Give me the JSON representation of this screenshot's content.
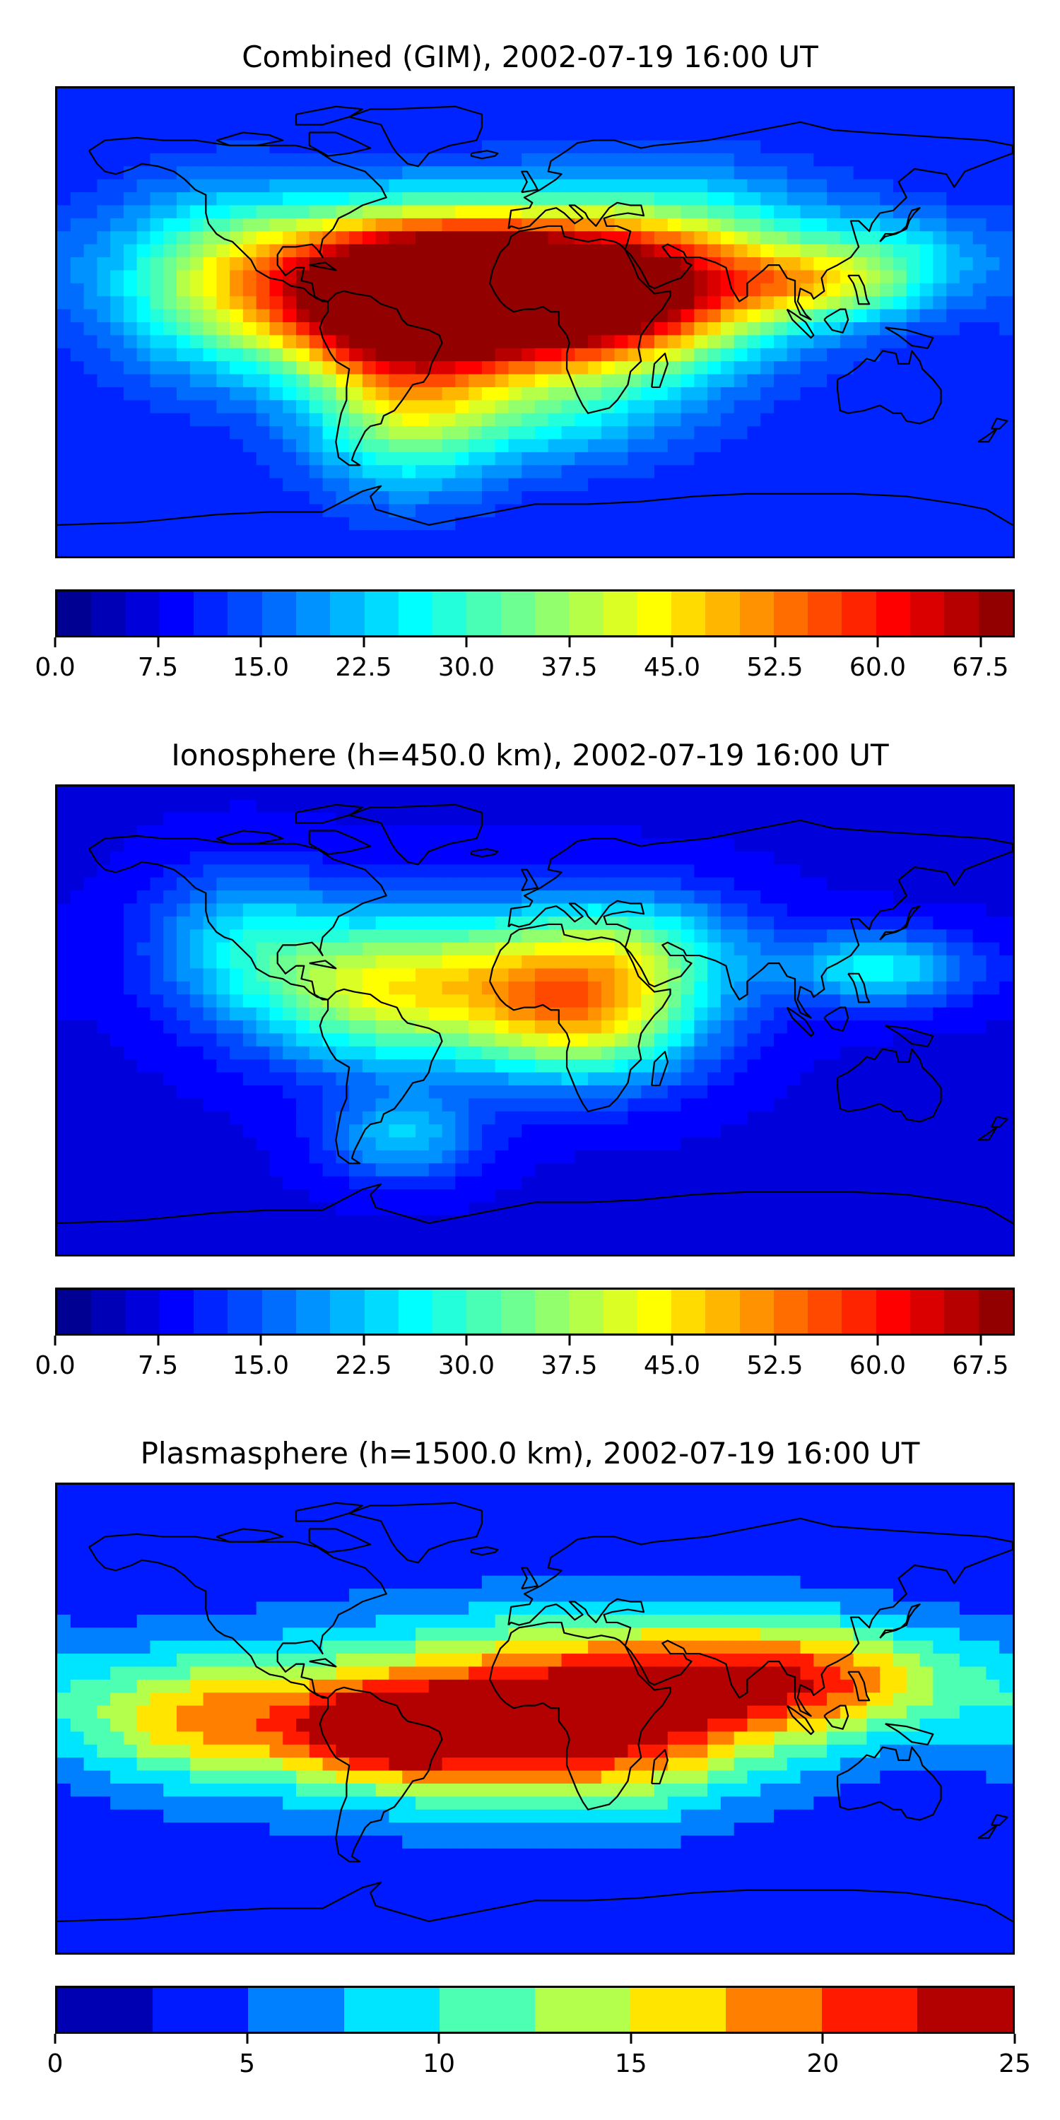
{
  "panels": [
    {
      "title": "Combined (GIM), 2002-07-19 16:00 UT",
      "colorbar": {
        "levels": 28,
        "min": 0,
        "max": 70,
        "ticks": [
          "0.0",
          "7.5",
          "15.0",
          "22.5",
          "30.0",
          "37.5",
          "45.0",
          "52.5",
          "60.0",
          "67.5"
        ],
        "tick_values": [
          0,
          7.5,
          15,
          22.5,
          30,
          37.5,
          45,
          52.5,
          60,
          67.5
        ]
      },
      "field": {
        "background": 10,
        "blobs": [
          {
            "lon": -15,
            "lat": 12,
            "value": 60,
            "sx": 60,
            "sy": 18
          },
          {
            "lon": -52,
            "lat": 0,
            "value": 52,
            "sx": 30,
            "sy": 20
          },
          {
            "lon": 20,
            "lat": 2,
            "value": 45,
            "sx": 40,
            "sy": 18
          },
          {
            "lon": -30,
            "lat": 25,
            "value": 40,
            "sx": 55,
            "sy": 18
          },
          {
            "lon": 110,
            "lat": 15,
            "value": 35,
            "sx": 30,
            "sy": 10
          },
          {
            "lon": -120,
            "lat": 15,
            "value": 30,
            "sx": 30,
            "sy": 25
          },
          {
            "lon": -50,
            "lat": -40,
            "value": 30,
            "sx": 25,
            "sy": 20
          },
          {
            "lon": 60,
            "lat": 30,
            "value": 28,
            "sx": 40,
            "sy": 20
          },
          {
            "lon": 0,
            "lat": -35,
            "value": 25,
            "sx": 40,
            "sy": 15
          },
          {
            "lon": 140,
            "lat": 30,
            "value": 20,
            "sx": 25,
            "sy": 10
          }
        ]
      }
    },
    {
      "title": "Ionosphere  (h=450.0 km), 2002-07-19 16:00 UT",
      "colorbar": {
        "levels": 28,
        "min": 0,
        "max": 70,
        "ticks": [
          "0.0",
          "7.5",
          "15.0",
          "22.5",
          "30.0",
          "37.5",
          "45.0",
          "52.5",
          "60.0",
          "67.5"
        ],
        "tick_values": [
          0,
          7.5,
          15,
          22.5,
          30,
          37.5,
          45,
          52.5,
          60,
          67.5
        ]
      },
      "field": {
        "background": 7,
        "blobs": [
          {
            "lon": -10,
            "lat": 15,
            "value": 38,
            "sx": 45,
            "sy": 20
          },
          {
            "lon": 20,
            "lat": 0,
            "value": 35,
            "sx": 30,
            "sy": 18
          },
          {
            "lon": -65,
            "lat": 10,
            "value": 30,
            "sx": 30,
            "sy": 20
          },
          {
            "lon": 130,
            "lat": 20,
            "value": 28,
            "sx": 25,
            "sy": 10
          },
          {
            "lon": -110,
            "lat": 30,
            "value": 24,
            "sx": 25,
            "sy": 20
          },
          {
            "lon": -50,
            "lat": -45,
            "value": 24,
            "sx": 20,
            "sy": 12
          },
          {
            "lon": 40,
            "lat": 30,
            "value": 22,
            "sx": 30,
            "sy": 15
          }
        ]
      }
    },
    {
      "title": "Plasmasphere (h=1500.0 km), 2002-07-19 16:00 UT",
      "colorbar": {
        "levels": 10,
        "min": 0,
        "max": 25,
        "ticks": [
          "0",
          "5",
          "10",
          "15",
          "20",
          "25"
        ],
        "tick_values": [
          0,
          5,
          10,
          15,
          20,
          25
        ]
      },
      "field": {
        "background": 3,
        "blobs": [
          {
            "lon": -40,
            "lat": 0,
            "value": 16,
            "sx": 80,
            "sy": 24
          },
          {
            "lon": -55,
            "lat": -5,
            "value": 19,
            "sx": 25,
            "sy": 12
          },
          {
            "lon": 50,
            "lat": 15,
            "value": 15,
            "sx": 60,
            "sy": 20
          },
          {
            "lon": 110,
            "lat": 15,
            "value": 14,
            "sx": 40,
            "sy": 15
          },
          {
            "lon": -130,
            "lat": 0,
            "value": 13,
            "sx": 30,
            "sy": 15
          },
          {
            "lon": 20,
            "lat": -10,
            "value": 13,
            "sx": 40,
            "sy": 20
          }
        ]
      }
    }
  ]
}
